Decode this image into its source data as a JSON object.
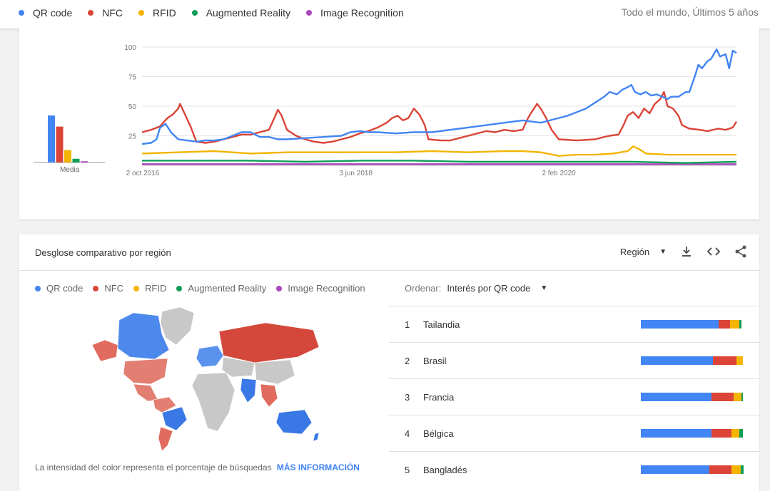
{
  "colors": {
    "qr": "#4285f4",
    "nfc": "#db4437",
    "rfid": "#f4b400",
    "ar": "#0f9d58",
    "img": "#ab47bc"
  },
  "legend": [
    {
      "label": "QR code",
      "color": "#4285f4"
    },
    {
      "label": "NFC",
      "color": "#db4437"
    },
    {
      "label": "RFID",
      "color": "#f4b400"
    },
    {
      "label": "Augmented Reality",
      "color": "#0f9d58"
    },
    {
      "label": "Image Recognition",
      "color": "#ab47bc"
    }
  ],
  "scope": "Todo el mundo, Últimos 5 años",
  "chart_data": {
    "type": "line",
    "title": "",
    "xlabel": "",
    "ylabel": "",
    "ylim": [
      0,
      100
    ],
    "yticks": [
      "100",
      "75",
      "50",
      "25"
    ],
    "xticks": [
      "2 oct 2016",
      "3 jun 2018",
      "2 feb 2020"
    ],
    "grid": true,
    "average_label": "Media",
    "averages": [
      38,
      29,
      10,
      3,
      1
    ],
    "series": [
      {
        "name": "QR code",
        "color": "#4285f4",
        "points": [
          [
            0,
            18
          ],
          [
            5,
            19
          ],
          [
            8,
            22
          ],
          [
            10,
            32
          ],
          [
            13,
            35
          ],
          [
            16,
            28
          ],
          [
            20,
            22
          ],
          [
            25,
            21
          ],
          [
            30,
            20
          ],
          [
            35,
            21
          ],
          [
            40,
            21
          ],
          [
            45,
            22
          ],
          [
            50,
            25
          ],
          [
            55,
            28
          ],
          [
            60,
            28
          ],
          [
            65,
            24
          ],
          [
            70,
            24
          ],
          [
            75,
            22
          ],
          [
            80,
            22
          ],
          [
            90,
            23
          ],
          [
            100,
            24
          ],
          [
            110,
            25
          ],
          [
            115,
            28
          ],
          [
            120,
            29
          ],
          [
            125,
            28
          ],
          [
            130,
            28
          ],
          [
            140,
            27
          ],
          [
            150,
            28
          ],
          [
            160,
            28
          ],
          [
            170,
            30
          ],
          [
            180,
            32
          ],
          [
            190,
            34
          ],
          [
            200,
            36
          ],
          [
            210,
            38
          ],
          [
            215,
            37
          ],
          [
            220,
            36
          ],
          [
            225,
            38
          ],
          [
            230,
            40
          ],
          [
            235,
            42
          ],
          [
            240,
            45
          ],
          [
            245,
            48
          ],
          [
            250,
            53
          ],
          [
            255,
            58
          ],
          [
            258,
            62
          ],
          [
            262,
            60
          ],
          [
            265,
            64
          ],
          [
            268,
            66
          ],
          [
            270,
            68
          ],
          [
            272,
            62
          ],
          [
            275,
            60
          ],
          [
            278,
            62
          ],
          [
            281,
            59
          ],
          [
            284,
            60
          ],
          [
            287,
            58
          ],
          [
            290,
            56
          ],
          [
            292,
            58
          ],
          [
            296,
            58
          ],
          [
            300,
            62
          ],
          [
            302,
            62
          ],
          [
            305,
            75
          ],
          [
            307,
            85
          ],
          [
            309,
            82
          ],
          [
            312,
            88
          ],
          [
            314,
            90
          ],
          [
            317,
            98
          ],
          [
            319,
            92
          ],
          [
            322,
            94
          ],
          [
            324,
            82
          ],
          [
            326,
            97
          ],
          [
            328,
            95
          ]
        ]
      },
      {
        "name": "NFC",
        "color": "#db4437",
        "points": [
          [
            0,
            28
          ],
          [
            5,
            30
          ],
          [
            10,
            33
          ],
          [
            14,
            40
          ],
          [
            17,
            43
          ],
          [
            20,
            48
          ],
          [
            21,
            52
          ],
          [
            24,
            42
          ],
          [
            27,
            32
          ],
          [
            30,
            20
          ],
          [
            35,
            19
          ],
          [
            40,
            20
          ],
          [
            45,
            22
          ],
          [
            50,
            24
          ],
          [
            55,
            26
          ],
          [
            60,
            26
          ],
          [
            65,
            28
          ],
          [
            70,
            30
          ],
          [
            73,
            40
          ],
          [
            75,
            47
          ],
          [
            77,
            42
          ],
          [
            80,
            30
          ],
          [
            85,
            25
          ],
          [
            90,
            22
          ],
          [
            95,
            20
          ],
          [
            100,
            19
          ],
          [
            105,
            20
          ],
          [
            110,
            22
          ],
          [
            115,
            24
          ],
          [
            120,
            27
          ],
          [
            125,
            29
          ],
          [
            130,
            32
          ],
          [
            135,
            36
          ],
          [
            138,
            40
          ],
          [
            141,
            42
          ],
          [
            144,
            38
          ],
          [
            147,
            40
          ],
          [
            150,
            48
          ],
          [
            153,
            43
          ],
          [
            156,
            34
          ],
          [
            158,
            22
          ],
          [
            165,
            21
          ],
          [
            170,
            21
          ],
          [
            175,
            23
          ],
          [
            180,
            25
          ],
          [
            185,
            27
          ],
          [
            190,
            29
          ],
          [
            195,
            28
          ],
          [
            200,
            30
          ],
          [
            205,
            29
          ],
          [
            210,
            30
          ],
          [
            213,
            40
          ],
          [
            215,
            45
          ],
          [
            218,
            52
          ],
          [
            220,
            48
          ],
          [
            223,
            40
          ],
          [
            226,
            30
          ],
          [
            230,
            22
          ],
          [
            240,
            21
          ],
          [
            250,
            22
          ],
          [
            255,
            24
          ],
          [
            258,
            25
          ],
          [
            263,
            26
          ],
          [
            266,
            35
          ],
          [
            268,
            42
          ],
          [
            271,
            45
          ],
          [
            274,
            40
          ],
          [
            277,
            48
          ],
          [
            280,
            44
          ],
          [
            283,
            52
          ],
          [
            286,
            56
          ],
          [
            288,
            62
          ],
          [
            290,
            50
          ],
          [
            293,
            48
          ],
          [
            296,
            42
          ],
          [
            298,
            34
          ],
          [
            302,
            31
          ],
          [
            308,
            30
          ],
          [
            312,
            29
          ],
          [
            318,
            31
          ],
          [
            322,
            30
          ],
          [
            326,
            32
          ],
          [
            328,
            37
          ]
        ]
      },
      {
        "name": "RFID",
        "color": "#f4b400",
        "points": [
          [
            0,
            10
          ],
          [
            20,
            11
          ],
          [
            40,
            12
          ],
          [
            60,
            10
          ],
          [
            80,
            11
          ],
          [
            100,
            11
          ],
          [
            120,
            11
          ],
          [
            140,
            11
          ],
          [
            160,
            12
          ],
          [
            180,
            11
          ],
          [
            200,
            12
          ],
          [
            210,
            12
          ],
          [
            220,
            11
          ],
          [
            230,
            8
          ],
          [
            240,
            9
          ],
          [
            250,
            9
          ],
          [
            260,
            10
          ],
          [
            268,
            12
          ],
          [
            271,
            16
          ],
          [
            274,
            14
          ],
          [
            278,
            10
          ],
          [
            290,
            9
          ],
          [
            310,
            9
          ],
          [
            328,
            9
          ]
        ]
      },
      {
        "name": "Augmented Reality",
        "color": "#0f9d58",
        "points": [
          [
            0,
            4
          ],
          [
            30,
            4
          ],
          [
            60,
            4
          ],
          [
            90,
            3
          ],
          [
            120,
            4
          ],
          [
            150,
            4
          ],
          [
            180,
            3
          ],
          [
            210,
            3
          ],
          [
            240,
            3
          ],
          [
            270,
            3
          ],
          [
            300,
            2
          ],
          [
            328,
            3
          ]
        ]
      },
      {
        "name": "Image Recognition",
        "color": "#ab47bc",
        "points": [
          [
            0,
            1
          ],
          [
            100,
            1
          ],
          [
            200,
            1
          ],
          [
            300,
            1
          ],
          [
            328,
            1
          ]
        ]
      }
    ],
    "x_domain": [
      0,
      328
    ]
  },
  "region": {
    "title": "Desglose comparativo por región",
    "dropdown_label": "Región",
    "sort_label": "Ordenar:",
    "sort_value": "Interés por QR code",
    "footnote": "La intensidad del color representa el porcentaje de búsquedas",
    "more_link": "MÁS INFORMACIÓN",
    "rows": [
      {
        "rank": "1",
        "name": "Tailandia",
        "shares": [
          76,
          11,
          9,
          2,
          0
        ]
      },
      {
        "rank": "2",
        "name": "Brasil",
        "shares": [
          70,
          23,
          6,
          0,
          0
        ]
      },
      {
        "rank": "3",
        "name": "Francia",
        "shares": [
          69,
          21,
          8,
          1,
          0
        ]
      },
      {
        "rank": "4",
        "name": "Bélgica",
        "shares": [
          69,
          19,
          8,
          3,
          0
        ]
      },
      {
        "rank": "5",
        "name": "Bangladés",
        "shares": [
          67,
          21,
          9,
          3,
          0
        ]
      }
    ]
  }
}
